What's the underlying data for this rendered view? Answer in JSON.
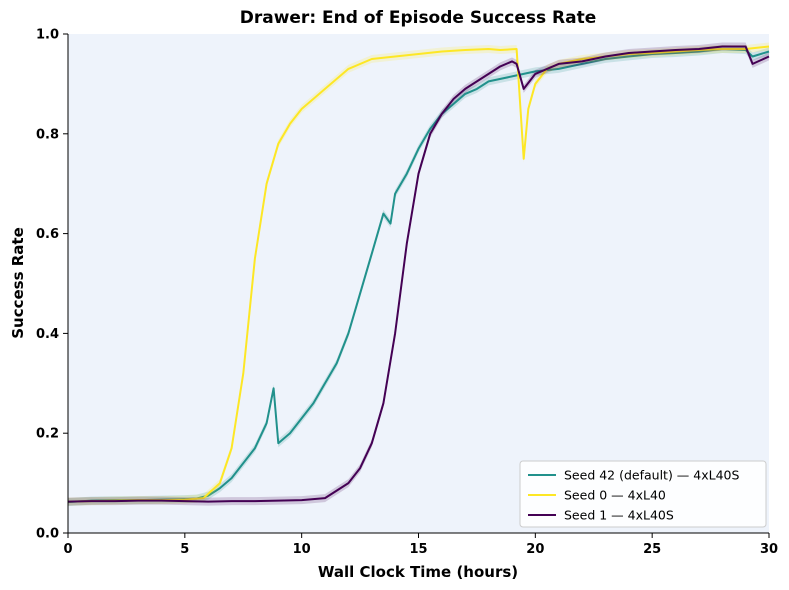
{
  "chart_data": {
    "type": "line",
    "title": "Drawer: End of Episode Success Rate",
    "xlabel": "Wall Clock Time (hours)",
    "ylabel": "Success Rate",
    "xlim": [
      0,
      30
    ],
    "ylim": [
      0,
      1
    ],
    "xticks": [
      "0",
      "5",
      "10",
      "15",
      "20",
      "25",
      "30"
    ],
    "yticks": [
      "0.0",
      "0.2",
      "0.4",
      "0.6",
      "0.8",
      "1.0"
    ],
    "grid": false,
    "legend_position": "lower-right",
    "plot_background": "#eef3fb",
    "series": [
      {
        "name": "Seed 42 (default) — 4xL40S",
        "color": "#21918c",
        "x": [
          0,
          1,
          2,
          3,
          4,
          5,
          5.5,
          6,
          6.5,
          7,
          7.5,
          8,
          8.5,
          8.8,
          9.0,
          9.5,
          10,
          10.5,
          11,
          11.5,
          12,
          12.5,
          13,
          13.5,
          13.8,
          14,
          14.5,
          15,
          15.5,
          16,
          16.5,
          17,
          17.5,
          18,
          19,
          20,
          21,
          22,
          23,
          24,
          25,
          26,
          27,
          28,
          29,
          29.3,
          30
        ],
        "y": [
          0.062,
          0.065,
          0.066,
          0.066,
          0.067,
          0.068,
          0.069,
          0.075,
          0.09,
          0.11,
          0.14,
          0.17,
          0.22,
          0.29,
          0.18,
          0.2,
          0.23,
          0.26,
          0.3,
          0.34,
          0.4,
          0.48,
          0.56,
          0.64,
          0.62,
          0.68,
          0.72,
          0.77,
          0.81,
          0.84,
          0.86,
          0.88,
          0.89,
          0.905,
          0.915,
          0.925,
          0.93,
          0.94,
          0.95,
          0.955,
          0.96,
          0.962,
          0.965,
          0.97,
          0.968,
          0.955,
          0.965
        ]
      },
      {
        "name": "Seed 0 — 4xL40",
        "color": "#fde725",
        "x": [
          0,
          1,
          2,
          3,
          4,
          5,
          5.8,
          6.5,
          7,
          7.5,
          8,
          8.5,
          9,
          9.5,
          10,
          10.5,
          11,
          12,
          13,
          14,
          15,
          16,
          17,
          18,
          18.5,
          19.2,
          19.5,
          19.7,
          20,
          20.5,
          21,
          22,
          23,
          24,
          25,
          26,
          27,
          28,
          29,
          30
        ],
        "y": [
          0.063,
          0.064,
          0.065,
          0.066,
          0.066,
          0.067,
          0.07,
          0.1,
          0.17,
          0.32,
          0.55,
          0.7,
          0.78,
          0.82,
          0.85,
          0.87,
          0.89,
          0.93,
          0.95,
          0.955,
          0.96,
          0.965,
          0.968,
          0.97,
          0.968,
          0.97,
          0.75,
          0.85,
          0.9,
          0.93,
          0.94,
          0.95,
          0.955,
          0.96,
          0.962,
          0.965,
          0.968,
          0.97,
          0.97,
          0.975
        ]
      },
      {
        "name": "Seed 1 — 4xL40S",
        "color": "#440154",
        "x": [
          0,
          1,
          2,
          3,
          4,
          5,
          6,
          7,
          8,
          9,
          10,
          11,
          11.5,
          12,
          12.5,
          13,
          13.5,
          14,
          14.5,
          15,
          15.5,
          16,
          16.5,
          17,
          17.5,
          18,
          18.5,
          19,
          19.2,
          19.5,
          20,
          21,
          22,
          23,
          24,
          25,
          26,
          27,
          28,
          29,
          29.3,
          30
        ],
        "y": [
          0.063,
          0.064,
          0.064,
          0.065,
          0.065,
          0.064,
          0.063,
          0.064,
          0.064,
          0.065,
          0.066,
          0.07,
          0.085,
          0.1,
          0.13,
          0.18,
          0.26,
          0.4,
          0.58,
          0.72,
          0.8,
          0.84,
          0.87,
          0.89,
          0.905,
          0.92,
          0.935,
          0.945,
          0.94,
          0.89,
          0.92,
          0.94,
          0.945,
          0.955,
          0.962,
          0.965,
          0.968,
          0.97,
          0.975,
          0.975,
          0.94,
          0.955
        ]
      }
    ]
  }
}
